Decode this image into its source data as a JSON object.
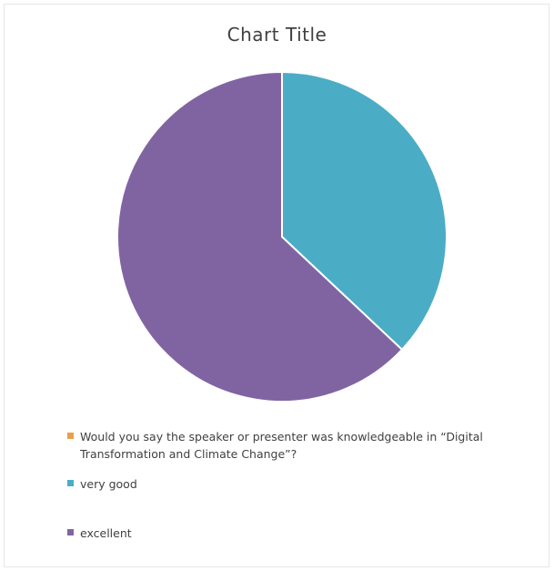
{
  "chart_data": {
    "type": "pie",
    "title": "Chart Title",
    "slices": [
      {
        "label": "Would you say the speaker or presenter was knowledgeable in “Digital Transformation and Climate Change”?",
        "value": 0,
        "color": "#E8A04A"
      },
      {
        "label": "very good",
        "value": 37,
        "color": "#4BACC6"
      },
      {
        "label": "excellent",
        "value": 63,
        "color": "#8064A2"
      }
    ],
    "legend_position": "bottom"
  }
}
